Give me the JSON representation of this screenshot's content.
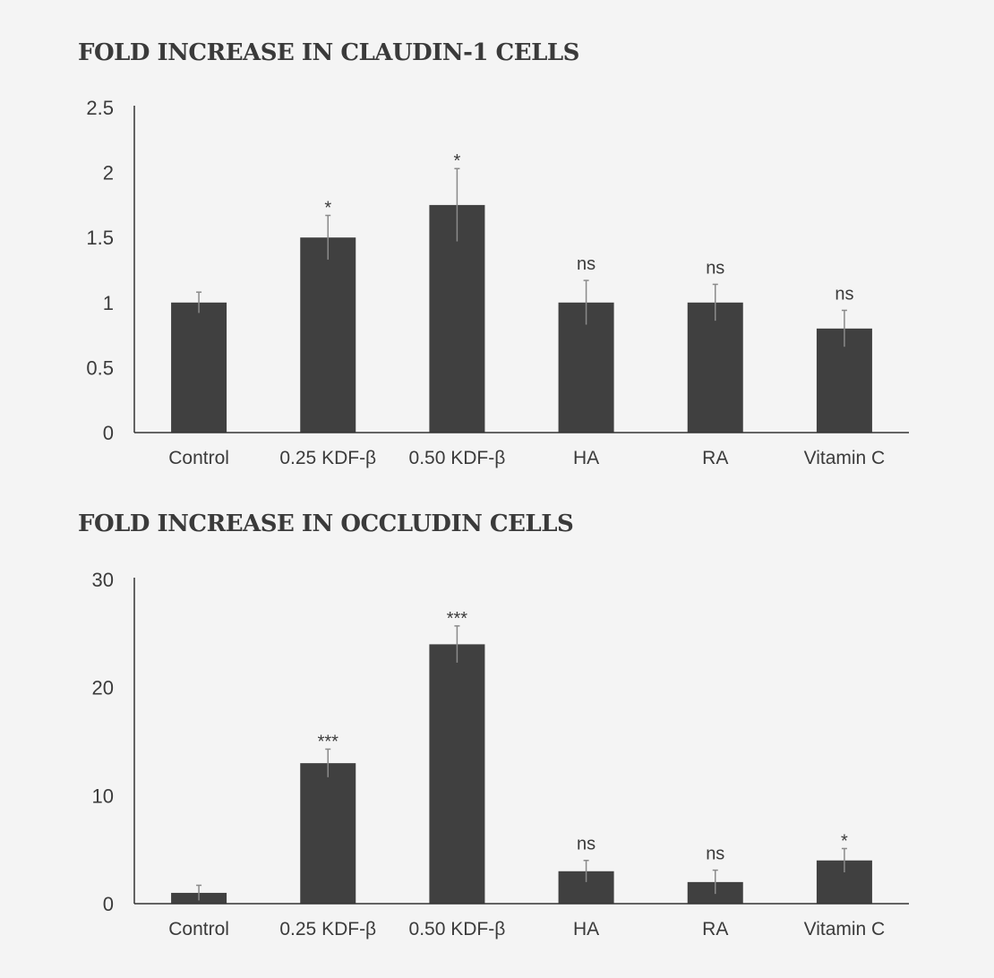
{
  "chart_data": [
    {
      "type": "bar",
      "title": "FOLD INCREASE IN CLAUDIN-1 CELLS",
      "categories": [
        "Control",
        "0.25 KDF-β",
        "0.50 KDF-β",
        "HA",
        "RA",
        "Vitamin C"
      ],
      "values": [
        1.0,
        1.5,
        1.75,
        1.0,
        1.0,
        0.8
      ],
      "errors": [
        0.08,
        0.17,
        0.28,
        0.17,
        0.14,
        0.14
      ],
      "annotations": [
        "",
        "*",
        "*",
        "ns",
        "ns",
        "ns"
      ],
      "ylim": [
        0,
        2.5
      ],
      "yticks": [
        0,
        0.5,
        1,
        1.5,
        2,
        2.5
      ],
      "ytick_labels": [
        "0",
        "0.5",
        "1",
        "1.5",
        "2",
        "2.5"
      ],
      "xlabel": "",
      "ylabel": "",
      "grid": false,
      "bar_color": "#404040"
    },
    {
      "type": "bar",
      "title": "FOLD INCREASE IN OCCLUDIN CELLS",
      "categories": [
        "Control",
        "0.25 KDF-β",
        "0.50 KDF-β",
        "HA",
        "RA",
        "Vitamin C"
      ],
      "values": [
        1.0,
        13.0,
        24.0,
        3.0,
        2.0,
        4.0
      ],
      "errors": [
        0.7,
        1.3,
        1.7,
        1.0,
        1.1,
        1.1
      ],
      "annotations": [
        "",
        "***",
        "***",
        "ns",
        "ns",
        "*"
      ],
      "ylim": [
        0,
        30
      ],
      "yticks": [
        0,
        10,
        20,
        30
      ],
      "ytick_labels": [
        "0",
        "10",
        "20",
        "30"
      ],
      "xlabel": "",
      "ylabel": "",
      "grid": false,
      "bar_color": "#404040"
    }
  ]
}
